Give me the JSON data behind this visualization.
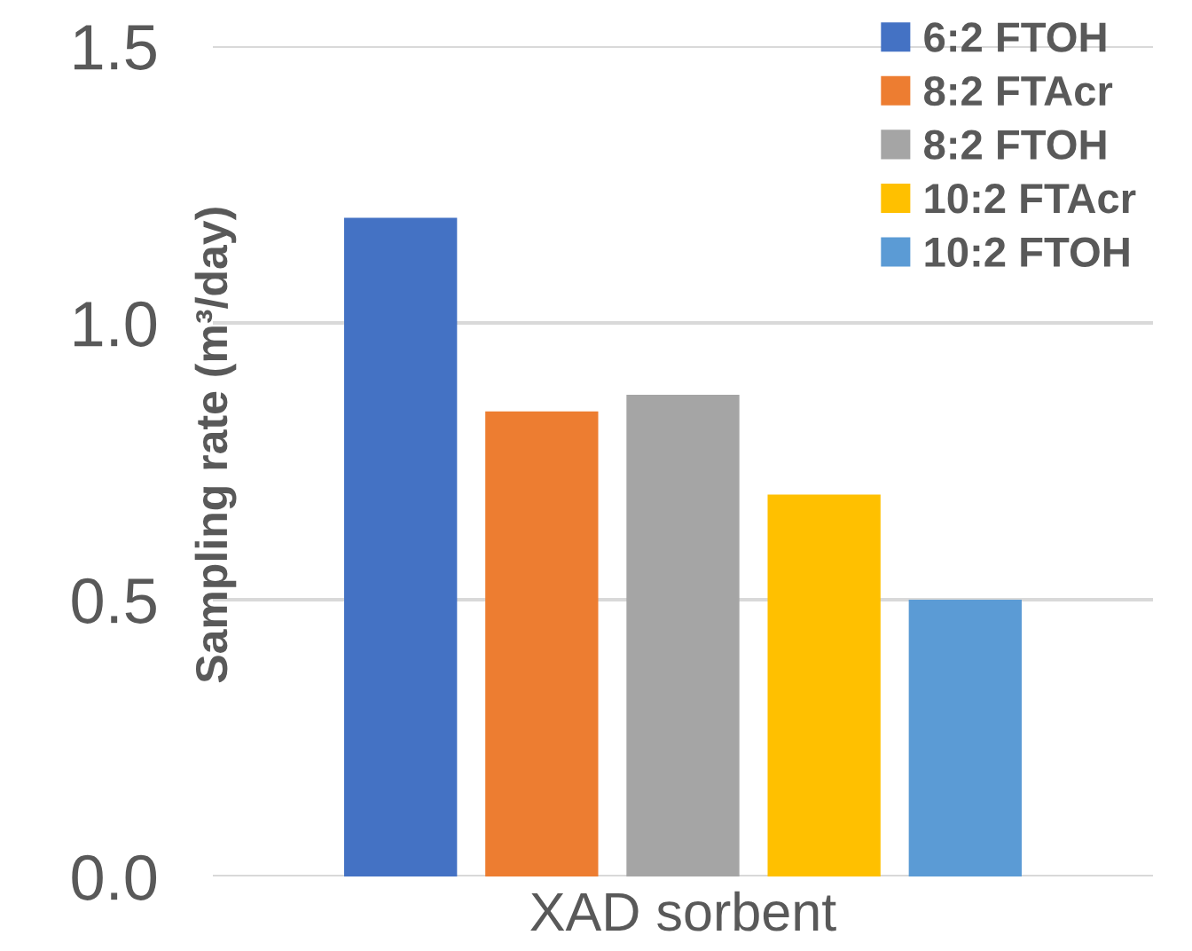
{
  "chart_data": {
    "type": "bar",
    "ylabel": "Sampling rate (m³/day)",
    "xlabel": "XAD sorbent",
    "categories": [
      null,
      null,
      null,
      null,
      null
    ],
    "series": [
      {
        "name": "6:2 FTOH",
        "color": "#4472c4",
        "values": [
          1.19,
          null,
          null,
          null,
          null
        ]
      },
      {
        "name": "8:2 FTAcr",
        "color": "#ed7d31",
        "values": [
          null,
          0.84,
          null,
          null,
          null
        ]
      },
      {
        "name": "8:2 FTOH",
        "color": "#a5a5a5",
        "values": [
          null,
          null,
          0.87,
          null,
          null
        ]
      },
      {
        "name": "10:2 FTAcr",
        "color": "#ffc000",
        "values": [
          null,
          null,
          null,
          0.69,
          null
        ]
      },
      {
        "name": "10:2 FTOH",
        "color": "#5b9bd5",
        "values": [
          null,
          null,
          null,
          null,
          0.5
        ]
      }
    ],
    "ylim": [
      0,
      1.5
    ],
    "yticks": [
      {
        "value": 0,
        "label": "0.0"
      },
      {
        "value": 0.5,
        "label": "0.5"
      },
      {
        "value": 1,
        "label": "1.0"
      },
      {
        "value": 1.5,
        "label": "1.5"
      }
    ],
    "grid": "y",
    "legend": "top right"
  }
}
